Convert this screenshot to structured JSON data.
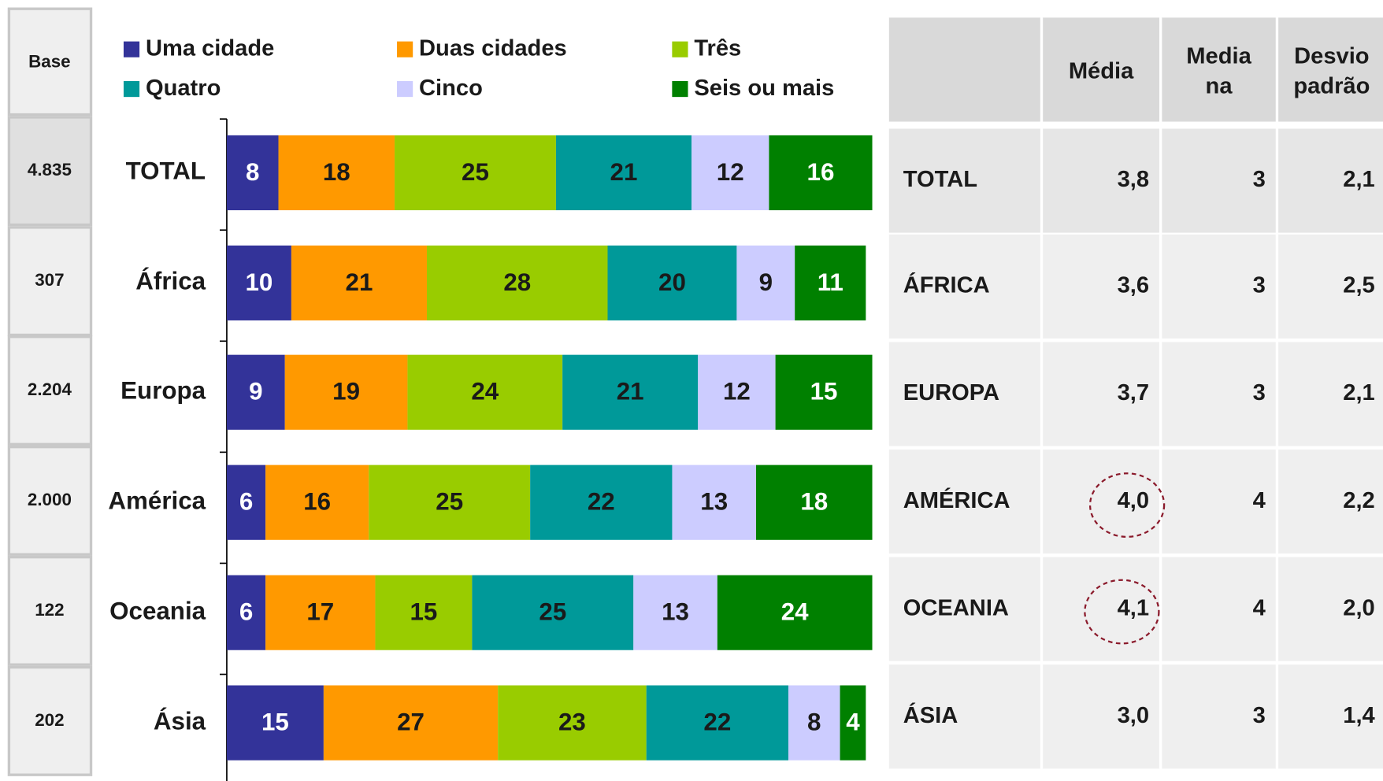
{
  "base": {
    "header": "Base",
    "values": [
      "4.835",
      "307",
      "2.204",
      "2.000",
      "122",
      "202"
    ]
  },
  "chart_data": {
    "type": "bar",
    "orientation": "horizontal",
    "stacked": true,
    "categories": [
      "TOTAL",
      "África",
      "Europa",
      "América",
      "Oceania",
      "Ásia"
    ],
    "xlim": [
      0,
      100
    ],
    "series": [
      {
        "name": "Uma cidade",
        "color": "#333399",
        "values": [
          8,
          10,
          9,
          6,
          6,
          15
        ]
      },
      {
        "name": "Duas cidades",
        "color": "#ff9900",
        "values": [
          18,
          21,
          19,
          16,
          17,
          27
        ]
      },
      {
        "name": "Três",
        "color": "#99cc00",
        "values": [
          25,
          28,
          24,
          25,
          15,
          23
        ]
      },
      {
        "name": "Quatro",
        "color": "#009999",
        "values": [
          21,
          20,
          21,
          22,
          25,
          22
        ]
      },
      {
        "name": "Cinco",
        "color": "#ccccff",
        "values": [
          12,
          9,
          12,
          13,
          13,
          8
        ]
      },
      {
        "name": "Seis ou mais",
        "color": "#008000",
        "values": [
          16,
          11,
          15,
          18,
          24,
          4
        ]
      }
    ]
  },
  "table": {
    "columns": [
      [
        "Média"
      ],
      [
        "Media",
        "na"
      ],
      [
        "Desvio",
        "padrão"
      ]
    ],
    "rows": [
      [
        "TOTAL",
        "3,8",
        "3",
        "2,1"
      ],
      [
        "ÁFRICA",
        "3,6",
        "3",
        "2,5"
      ],
      [
        "EUROPA",
        "3,7",
        "3",
        "2,1"
      ],
      [
        "AMÉRICA",
        "4,0",
        "4",
        "2,2"
      ],
      [
        "OCEANIA",
        "4,1",
        "4",
        "2,0"
      ],
      [
        "ÁSIA",
        "3,0",
        "3",
        "1,4"
      ]
    ]
  }
}
